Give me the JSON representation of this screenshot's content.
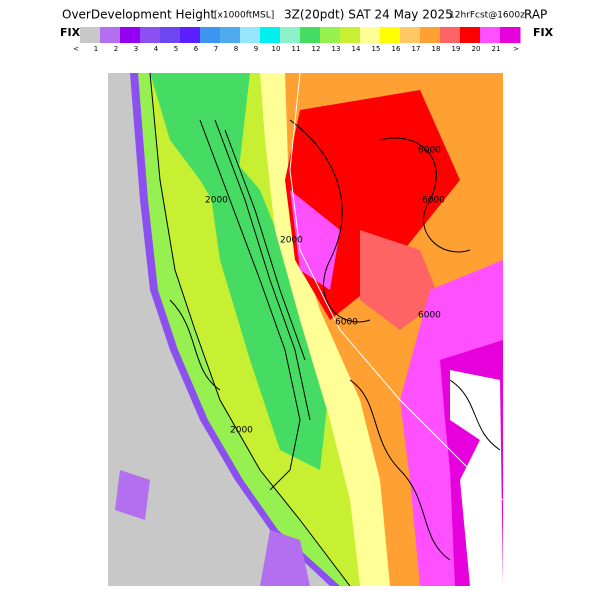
{
  "header": {
    "title": "OverDevelopment Height",
    "units": "[x1000ftMSL]",
    "time": "3Z(20pdt) SAT 24 May 2025",
    "forecast": "12hrFcst@1600z",
    "model": "RAP"
  },
  "colorbar": {
    "left_label": "FIX",
    "right_label": "FIX",
    "colors": [
      "#c8c8c8",
      "#b46ef0",
      "#9600f0",
      "#8c50f0",
      "#6e46f0",
      "#5a1eff",
      "#3c96f0",
      "#50aaf0",
      "#96e6ff",
      "#00f0f0",
      "#8cf0c8",
      "#46dc64",
      "#96f050",
      "#c8f032",
      "#ffff96",
      "#ffff00",
      "#ffc864",
      "#ffa032",
      "#ff6464",
      "#ff0000",
      "#ff50ff",
      "#e600dc"
    ],
    "labels": [
      "<",
      "1",
      "2",
      "3",
      "4",
      "5",
      "6",
      "7",
      "8",
      "9",
      "10",
      "11",
      "12",
      "13",
      "14",
      "15",
      "16",
      "17",
      "18",
      "19",
      "20",
      "21",
      ">"
    ]
  },
  "map": {
    "contour_labels": [
      "6000",
      "6000",
      "6000",
      "6000",
      "2000",
      "2000",
      "2000"
    ]
  }
}
